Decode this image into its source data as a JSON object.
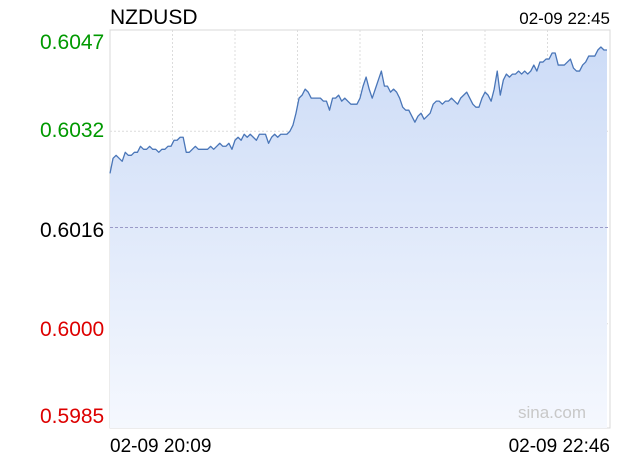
{
  "header": {
    "symbol": "NZDUSD",
    "timestamp": "02-09 22:45"
  },
  "watermark": "sina.com",
  "colors": {
    "up": "#009900",
    "down": "#dd0000",
    "neutral": "#000000",
    "line": "#4a76b8",
    "fill_top": "#cddcf7",
    "fill_bottom": "#f5f8fe",
    "grid": "#dcdcdc",
    "baseline": "#9a9ac8"
  },
  "chart_data": {
    "type": "area",
    "title": "NZDUSD",
    "xlabel": "",
    "ylabel": "",
    "ylim": [
      0.5985,
      0.6047
    ],
    "grid": true,
    "previous_close": 0.6016,
    "y_ticks": [
      "0.6047",
      "0.6032",
      "0.6016",
      "0.6000",
      "0.5985"
    ],
    "x_tick_labels": [
      "02-09 20:09",
      "02-09 22:46"
    ],
    "series": [
      {
        "values": [
          0.6025,
          0.60275,
          0.6028,
          0.60275,
          0.6027,
          0.60285,
          0.6028,
          0.6028,
          0.60285,
          0.60285,
          0.60295,
          0.6029,
          0.6029,
          0.60295,
          0.6029,
          0.6029,
          0.60285,
          0.6029,
          0.6029,
          0.60295,
          0.60295,
          0.60305,
          0.60305,
          0.6031,
          0.6031,
          0.60285,
          0.60285,
          0.6029,
          0.60295,
          0.6029,
          0.6029,
          0.6029,
          0.6029,
          0.60295,
          0.6029,
          0.60295,
          0.603,
          0.60295,
          0.60295,
          0.603,
          0.6029,
          0.60305,
          0.6031,
          0.60305,
          0.60315,
          0.6031,
          0.60315,
          0.6031,
          0.60305,
          0.60315,
          0.60315,
          0.60315,
          0.603,
          0.6031,
          0.60315,
          0.6031,
          0.60315,
          0.60315,
          0.60315,
          0.6032,
          0.6033,
          0.6035,
          0.60375,
          0.6038,
          0.6039,
          0.60385,
          0.60375,
          0.60375,
          0.60375,
          0.60375,
          0.6037,
          0.6037,
          0.60355,
          0.60375,
          0.60375,
          0.6038,
          0.6037,
          0.60375,
          0.6037,
          0.60365,
          0.60365,
          0.60365,
          0.60375,
          0.60395,
          0.6041,
          0.6039,
          0.60375,
          0.6039,
          0.60405,
          0.6042,
          0.60395,
          0.60395,
          0.60385,
          0.6039,
          0.60385,
          0.60375,
          0.6036,
          0.60355,
          0.60355,
          0.60345,
          0.60335,
          0.60345,
          0.6035,
          0.6034,
          0.60345,
          0.6035,
          0.60365,
          0.6037,
          0.6037,
          0.60365,
          0.6037,
          0.6037,
          0.60375,
          0.6037,
          0.60365,
          0.60375,
          0.6038,
          0.60385,
          0.60375,
          0.60365,
          0.6036,
          0.6036,
          0.60375,
          0.60385,
          0.6038,
          0.6037,
          0.6039,
          0.6042,
          0.6038,
          0.60405,
          0.60415,
          0.6041,
          0.60415,
          0.60415,
          0.6042,
          0.60415,
          0.6042,
          0.60415,
          0.6042,
          0.6043,
          0.6042,
          0.60435,
          0.60435,
          0.6044,
          0.6044,
          0.6045,
          0.6045,
          0.6043,
          0.6043,
          0.6043,
          0.60435,
          0.6044,
          0.60425,
          0.6042,
          0.6042,
          0.6043,
          0.60435,
          0.60445,
          0.60445,
          0.60445,
          0.60455,
          0.6046,
          0.60455,
          0.60455
        ]
      }
    ]
  }
}
